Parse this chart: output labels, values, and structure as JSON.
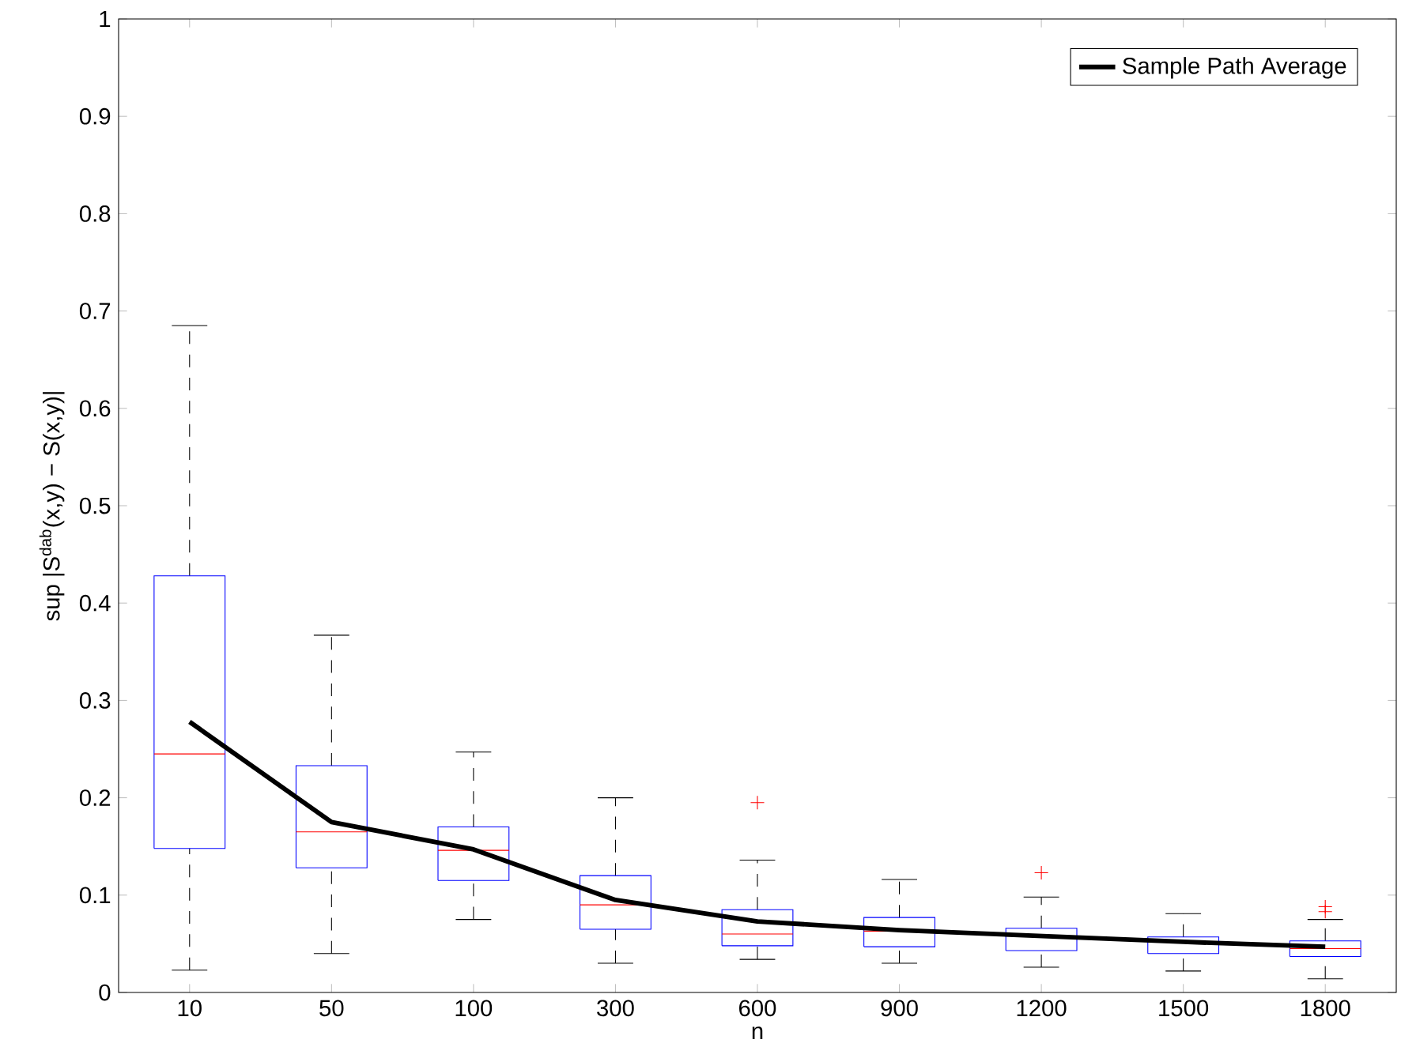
{
  "chart_data": {
    "type": "box",
    "xlabel": "n",
    "ylabel": "sup |S$^{dab}$(x,y) − S(x,y)|",
    "categories": [
      "10",
      "50",
      "100",
      "300",
      "600",
      "900",
      "1200",
      "1500",
      "1800"
    ],
    "ylim": [
      0,
      1
    ],
    "yticks": [
      0,
      0.1,
      0.2,
      0.3,
      0.4,
      0.5,
      0.6,
      0.7,
      0.8,
      0.9,
      1
    ],
    "color": "#0000ff",
    "boxes": [
      {
        "low": 0.023,
        "q1": 0.148,
        "median": 0.245,
        "q3": 0.428,
        "high": 0.685
      },
      {
        "low": 0.04,
        "q1": 0.128,
        "median": 0.165,
        "q3": 0.233,
        "high": 0.367
      },
      {
        "low": 0.075,
        "q1": 0.115,
        "median": 0.146,
        "q3": 0.17,
        "high": 0.247
      },
      {
        "low": 0.03,
        "q1": 0.065,
        "median": 0.09,
        "q3": 0.12,
        "high": 0.2
      },
      {
        "low": 0.034,
        "q1": 0.048,
        "median": 0.06,
        "q3": 0.085,
        "high": 0.136,
        "outliers": [
          0.195
        ]
      },
      {
        "low": 0.03,
        "q1": 0.047,
        "median": 0.063,
        "q3": 0.077,
        "high": 0.116
      },
      {
        "low": 0.026,
        "q1": 0.043,
        "median": 0.058,
        "q3": 0.066,
        "high": 0.098,
        "outliers": [
          0.123
        ]
      },
      {
        "low": 0.022,
        "q1": 0.04,
        "median": 0.052,
        "q3": 0.057,
        "high": 0.081
      },
      {
        "low": 0.014,
        "q1": 0.037,
        "median": 0.045,
        "q3": 0.053,
        "high": 0.075,
        "outliers": [
          0.088,
          0.083
        ]
      }
    ],
    "series": [
      {
        "type": "line",
        "name": "Sample Path Average",
        "color": "#000000",
        "values": [
          0.278,
          0.175,
          0.147,
          0.095,
          0.073,
          0.064,
          0.058,
          0.052,
          0.047
        ]
      }
    ],
    "legend": "top right"
  }
}
